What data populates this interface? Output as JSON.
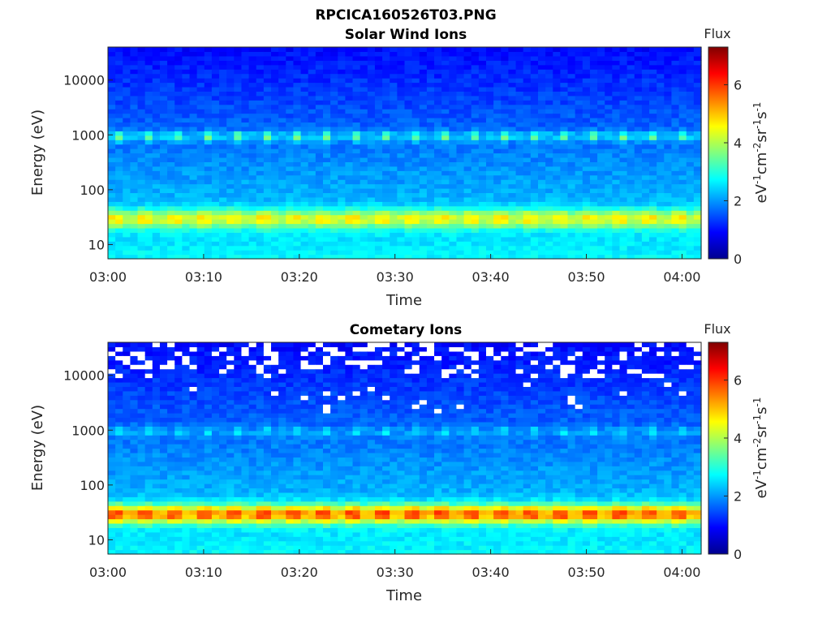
{
  "figure_title": "RPCICA160526T03.PNG",
  "colors": {
    "missing": "#ffffff",
    "axis": "#262626"
  },
  "chart_data": [
    {
      "type": "heatmap",
      "title": "Solar Wind Ions",
      "xlabel": "Time",
      "ylabel": "Energy (eV)",
      "yscale": "log",
      "x_ticks": [
        "03:00",
        "03:10",
        "03:20",
        "03:30",
        "03:40",
        "03:50",
        "04:00"
      ],
      "y_ticks": [
        "10",
        "100",
        "1000",
        "10000"
      ],
      "y_tick_values": [
        10,
        100,
        1000,
        10000
      ],
      "xlim": [
        "03:00",
        "04:02"
      ],
      "ylim": [
        5.5,
        40000
      ],
      "colorbar": {
        "title": "Flux",
        "label": "eV-1cm-2sr-1s-1",
        "ticks": [
          "0",
          "2",
          "4",
          "6"
        ],
        "range": [
          0,
          7.3
        ],
        "colormap": "jet"
      },
      "features": [
        {
          "energy_range_eV": [
            18,
            50
          ],
          "peak_flux": 5.0
        },
        {
          "energy_range_eV": [
            700,
            1300
          ],
          "peak_flux": 4.2,
          "pattern": "periodic ~3 min"
        }
      ]
    },
    {
      "type": "heatmap",
      "title": "Cometary Ions",
      "xlabel": "Time",
      "ylabel": "Energy (eV)",
      "yscale": "log",
      "x_ticks": [
        "03:00",
        "03:10",
        "03:20",
        "03:30",
        "03:40",
        "03:50",
        "04:00"
      ],
      "y_ticks": [
        "10",
        "100",
        "1000",
        "10000"
      ],
      "y_tick_values": [
        10,
        100,
        1000,
        10000
      ],
      "xlim": [
        "03:00",
        "04:02"
      ],
      "ylim": [
        5.5,
        40000
      ],
      "colorbar": {
        "title": "Flux",
        "label": "eV-1cm-2sr-1s-1",
        "ticks": [
          "0",
          "2",
          "4",
          "6"
        ],
        "range": [
          0,
          7.3
        ],
        "colormap": "jet"
      },
      "features": [
        {
          "energy_range_eV": [
            18,
            50
          ],
          "peak_flux": 6.3
        },
        {
          "energy_range_eV": [
            700,
            1300
          ],
          "peak_flux": 3.2,
          "pattern": "periodic ~3 min"
        }
      ]
    }
  ]
}
